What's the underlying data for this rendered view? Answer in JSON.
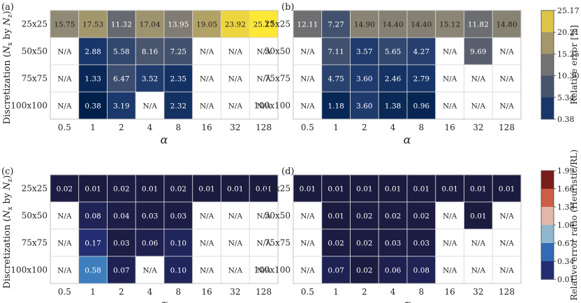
{
  "chart_data": [
    {
      "type": "heatmap",
      "panel_label": "(a)",
      "x": [
        "0.5",
        "1",
        "2",
        "4",
        "8",
        "16",
        "32",
        "128"
      ],
      "y": [
        "25x25",
        "50x50",
        "75x75",
        "100x100"
      ],
      "xlabel": "α",
      "ylabel_main": "Discretization (",
      "ylabel_nx": "N",
      "ylabel_x_sub": "x",
      "ylabel_by": " by ",
      "ylabel_ny": "N",
      "ylabel_z_sub": "z",
      "ylabel_close": ")",
      "values": [
        [
          15.75,
          17.53,
          11.32,
          17.04,
          13.95,
          19.05,
          23.92,
          25.17
        ],
        [
          null,
          2.88,
          5.58,
          8.16,
          7.25,
          null,
          null,
          null
        ],
        [
          null,
          1.33,
          6.47,
          3.52,
          2.35,
          null,
          null,
          null
        ],
        [
          null,
          0.38,
          3.19,
          null,
          2.32,
          null,
          null,
          null
        ]
      ],
      "missing_label": "N/A",
      "colorscale": "cividis"
    },
    {
      "type": "heatmap",
      "panel_label": "(b)",
      "x": [
        "0.5",
        "1",
        "2",
        "4",
        "8",
        "16",
        "32",
        "128"
      ],
      "y": [
        "25x25",
        "50x50",
        "75x75",
        "100x100"
      ],
      "xlabel": "α",
      "values": [
        [
          12.11,
          7.27,
          14.9,
          14.4,
          14.4,
          15.12,
          11.82,
          14.8
        ],
        [
          null,
          7.11,
          3.57,
          5.65,
          4.27,
          null,
          9.69,
          null
        ],
        [
          null,
          4.75,
          3.6,
          2.46,
          2.79,
          null,
          null,
          null
        ],
        [
          null,
          1.18,
          3.6,
          1.38,
          0.96,
          null,
          null,
          null
        ]
      ],
      "missing_label": "N/A",
      "colorscale": "cividis"
    },
    {
      "type": "heatmap",
      "panel_label": "(c)",
      "x": [
        "0.5",
        "1",
        "2",
        "4",
        "8",
        "16",
        "32",
        "128"
      ],
      "y": [
        "25x25",
        "50x50",
        "75x75",
        "100x100"
      ],
      "xlabel": "α",
      "ylabel_main": "Discretization (",
      "ylabel_nx": "N",
      "ylabel_x_sub": "x",
      "ylabel_by": " by ",
      "ylabel_ny": "N",
      "ylabel_z_sub": "z",
      "ylabel_close": ")",
      "values": [
        [
          0.02,
          0.01,
          0.02,
          0.01,
          0.02,
          0.01,
          0.01,
          0.01
        ],
        [
          null,
          0.08,
          0.04,
          0.03,
          0.03,
          null,
          null,
          null
        ],
        [
          null,
          0.17,
          0.03,
          0.06,
          0.1,
          null,
          null,
          null
        ],
        [
          null,
          0.58,
          0.07,
          null,
          0.1,
          null,
          null,
          null
        ]
      ],
      "missing_label": "N/A",
      "colorscale": "icefire"
    },
    {
      "type": "heatmap",
      "panel_label": "(d)",
      "x": [
        "0.5",
        "1",
        "2",
        "4",
        "8",
        "16",
        "32",
        "128"
      ],
      "y": [
        "25x25",
        "50x50",
        "75x75",
        "100x100"
      ],
      "xlabel": "α",
      "values": [
        [
          0.01,
          0.01,
          0.01,
          0.01,
          0.01,
          0.01,
          0.01,
          0.01
        ],
        [
          null,
          0.01,
          0.02,
          0.02,
          0.02,
          null,
          0.01,
          null
        ],
        [
          null,
          0.02,
          0.02,
          0.03,
          0.03,
          null,
          null,
          null
        ],
        [
          null,
          0.07,
          0.02,
          0.06,
          0.08,
          null,
          null,
          null
        ]
      ],
      "missing_label": "N/A",
      "colorscale": "icefire"
    }
  ],
  "colorbars": [
    {
      "label": "Relative error [%]",
      "ticks": [
        "25.17",
        "20.21",
        "15.25",
        "10.30",
        "5.34",
        "0.38"
      ],
      "range": [
        0.38,
        25.17
      ],
      "colorscale": "cividis"
    },
    {
      "label": "Relative error ratio (Heuristic/RL)",
      "ticks": [
        "1.99",
        "1.66",
        "1.33",
        "1.00",
        "0.67",
        "0.34",
        "0.01"
      ],
      "range": [
        0.01,
        1.99
      ],
      "colorscale": "icefire"
    }
  ],
  "colors": {
    "missing_cell": "#ffffff",
    "cell_border": "#d9d9d9"
  }
}
